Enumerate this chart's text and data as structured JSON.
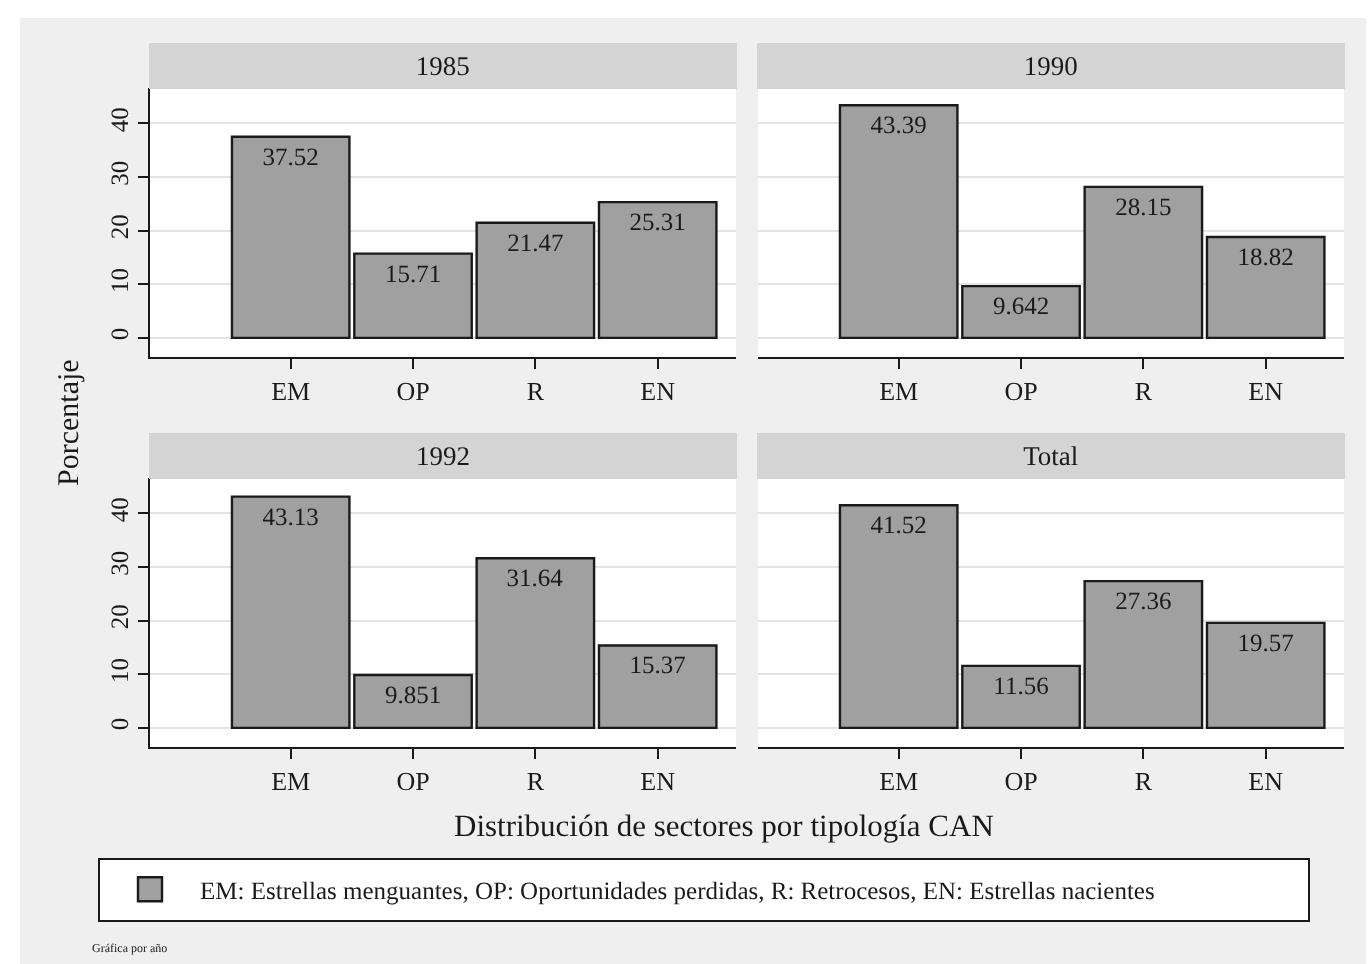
{
  "chart_data": [
    {
      "type": "bar",
      "title": "1985",
      "ylabel": "Porcentaje",
      "categories": [
        "EM",
        "OP",
        "R",
        "EN"
      ],
      "series": [
        {
          "color": "#a0a0a0",
          "values": [
            37.52,
            15.71,
            21.47,
            25.31
          ]
        }
      ],
      "ylim": [
        -3.5,
        46.6
      ],
      "yticks": [
        0,
        10,
        20,
        30,
        40
      ],
      "grid": "y",
      "data_labels": true
    },
    {
      "type": "bar",
      "title": "1990",
      "categories": [
        "EM",
        "OP",
        "R",
        "EN"
      ],
      "series": [
        {
          "color": "#a0a0a0",
          "values": [
            43.39,
            9.642,
            28.15,
            18.82
          ]
        }
      ],
      "ylim": [
        -3.5,
        46.6
      ],
      "yticks": [
        0,
        10,
        20,
        30,
        40
      ],
      "grid": "y",
      "data_labels": true,
      "tick_labels": "x"
    },
    {
      "type": "bar",
      "title": "1992",
      "xlabel": "Distribución de sectores por tipología CAN",
      "categories": [
        "EM",
        "OP",
        "R",
        "EN"
      ],
      "series": [
        {
          "name": "EM: Estrellas menguantes, OP: Oportunidades perdidas, R: Retrocesos, EN: Estrellas nacientes",
          "color": "#a0a0a0",
          "values": [
            43.13,
            9.851,
            31.64,
            15.37
          ]
        }
      ],
      "ylim": [
        -3.5,
        46.6
      ],
      "yticks": [
        0,
        10,
        20,
        30,
        40
      ],
      "grid": "y",
      "data_labels": true,
      "legend": "bottom",
      "annotations": [
        "Gráfica por año"
      ]
    },
    {
      "type": "bar",
      "title": "Total",
      "categories": [
        "EM",
        "OP",
        "R",
        "EN"
      ],
      "series": [
        {
          "color": "#a0a0a0",
          "values": [
            41.52,
            11.56,
            27.36,
            19.57
          ]
        }
      ],
      "ylim": [
        -3.5,
        46.6
      ],
      "yticks": [
        0,
        10,
        20,
        30,
        40
      ],
      "grid": "y",
      "data_labels": true,
      "tick_labels": "x"
    }
  ]
}
